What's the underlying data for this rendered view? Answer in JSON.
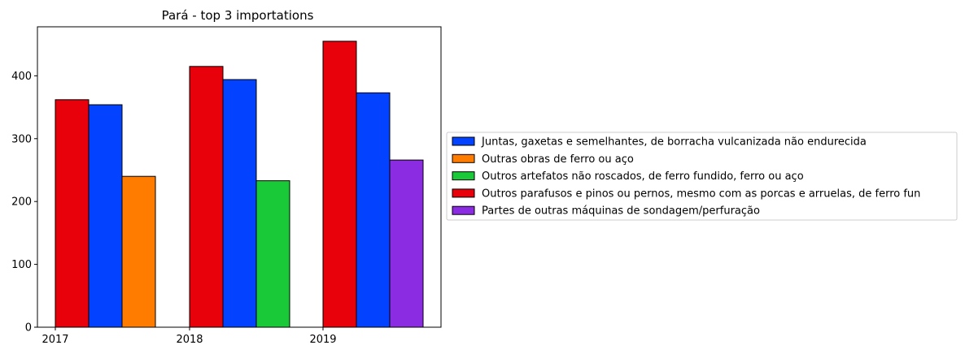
{
  "chart_data": {
    "type": "bar",
    "title": "Pará - top 3 importations",
    "xlabel": "",
    "ylabel": "",
    "categories": [
      "2017",
      "2018",
      "2019"
    ],
    "ylim": [
      0,
      478
    ],
    "yticks": [
      0,
      100,
      200,
      300,
      400
    ],
    "grid": false,
    "legend_position": "right",
    "bars": [
      {
        "category": "2017",
        "series": "Outros parafusos e pinos ou pernos, mesmo com as porcas e arruelas, de ferro fun",
        "value": 362
      },
      {
        "category": "2017",
        "series": "Juntas, gaxetas e semelhantes, de borracha vulcanizada não endurecida",
        "value": 354
      },
      {
        "category": "2017",
        "series": "Outras obras de ferro ou aço",
        "value": 240
      },
      {
        "category": "2018",
        "series": "Outros parafusos e pinos ou pernos, mesmo com as porcas e arruelas, de ferro fun",
        "value": 415
      },
      {
        "category": "2018",
        "series": "Juntas, gaxetas e semelhantes, de borracha vulcanizada não endurecida",
        "value": 394
      },
      {
        "category": "2018",
        "series": "Outros artefatos não roscados, de ferro fundido, ferro ou aço",
        "value": 233
      },
      {
        "category": "2019",
        "series": "Outros parafusos e pinos ou pernos, mesmo com as porcas e arruelas, de ferro fun",
        "value": 455
      },
      {
        "category": "2019",
        "series": "Juntas, gaxetas e semelhantes, de borracha vulcanizada não endurecida",
        "value": 373
      },
      {
        "category": "2019",
        "series": "Partes de outras máquinas de sondagem/perfuração",
        "value": 266
      }
    ],
    "legend": [
      {
        "name": "Juntas, gaxetas e semelhantes, de borracha vulcanizada não endurecida",
        "color": "#0343ff"
      },
      {
        "name": "Outras obras de ferro ou aço",
        "color": "#ff7c00"
      },
      {
        "name": "Outros artefatos não roscados, de ferro fundido, ferro ou aço",
        "color": "#1ac938"
      },
      {
        "name": "Outros parafusos e pinos ou pernos, mesmo com as porcas e arruelas, de ferro fun",
        "color": "#e8000b"
      },
      {
        "name": "Partes de outras máquinas de sondagem/perfuração",
        "color": "#8b2be2"
      }
    ]
  }
}
